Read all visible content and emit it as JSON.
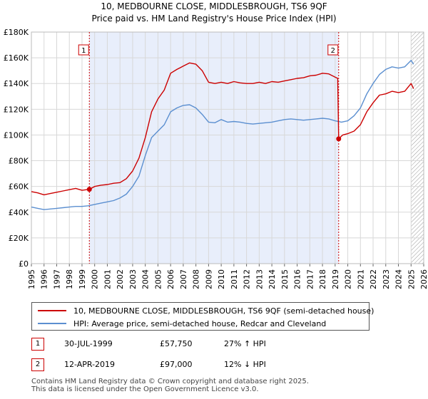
{
  "chart_data": {
    "type": "line",
    "title": "10, MEDBOURNE CLOSE, MIDDLESBROUGH, TS6 9QF",
    "subtitle": "Price paid vs. HM Land Registry's House Price Index (HPI)",
    "x_range": [
      1995,
      2026
    ],
    "ylim": [
      0,
      180000
    ],
    "y_ticks": [
      0,
      20000,
      40000,
      60000,
      80000,
      100000,
      120000,
      140000,
      160000,
      180000
    ],
    "y_tick_labels": [
      "£0",
      "£20K",
      "£40K",
      "£60K",
      "£80K",
      "£100K",
      "£120K",
      "£140K",
      "£160K",
      "£180K"
    ],
    "x_ticks": [
      1995,
      1996,
      1997,
      1998,
      1999,
      2000,
      2001,
      2002,
      2003,
      2004,
      2005,
      2006,
      2007,
      2008,
      2009,
      2010,
      2011,
      2012,
      2013,
      2014,
      2015,
      2016,
      2017,
      2018,
      2019,
      2020,
      2021,
      2022,
      2023,
      2024,
      2025,
      2026
    ],
    "grid": true,
    "shaded_period": [
      1999.58,
      2019.28
    ],
    "hatched_from": 2025.0,
    "series": [
      {
        "name": "10, MEDBOURNE CLOSE, MIDDLESBROUGH, TS6 9QF (semi-detached house)",
        "color": "#cc0000",
        "x": [
          1995.0,
          1995.5,
          1996.0,
          1996.5,
          1997.0,
          1997.5,
          1998.0,
          1998.5,
          1999.0,
          1999.58,
          2000.0,
          2000.5,
          2001.0,
          2001.5,
          2002.0,
          2002.5,
          2003.0,
          2003.5,
          2004.0,
          2004.5,
          2005.0,
          2005.5,
          2006.0,
          2006.5,
          2007.0,
          2007.5,
          2008.0,
          2008.5,
          2009.0,
          2009.5,
          2010.0,
          2010.5,
          2011.0,
          2011.5,
          2012.0,
          2012.5,
          2013.0,
          2013.5,
          2014.0,
          2014.5,
          2015.0,
          2015.5,
          2016.0,
          2016.5,
          2017.0,
          2017.5,
          2018.0,
          2018.5,
          2019.0,
          2019.2,
          2019.28,
          2019.6,
          2020.0,
          2020.5,
          2021.0,
          2021.5,
          2022.0,
          2022.5,
          2023.0,
          2023.5,
          2024.0,
          2024.5,
          2025.0,
          2025.2
        ],
        "values": [
          56000,
          55000,
          53500,
          54500,
          55500,
          56500,
          57500,
          58500,
          57000,
          57750,
          60000,
          61000,
          61500,
          62500,
          63000,
          66000,
          72000,
          82000,
          98000,
          118000,
          128000,
          135000,
          148000,
          151000,
          153500,
          156000,
          155000,
          150000,
          141000,
          140000,
          141000,
          140000,
          141500,
          140500,
          140000,
          140000,
          141000,
          140000,
          141500,
          141000,
          142000,
          143000,
          144000,
          144500,
          146000,
          146500,
          148000,
          147500,
          145000,
          144000,
          97000,
          100000,
          101000,
          103000,
          108000,
          118000,
          125000,
          131000,
          132000,
          134000,
          133000,
          134000,
          140000,
          136000
        ]
      },
      {
        "name": "HPI: Average price, semi-detached house, Redcar and Cleveland",
        "color": "#5b8fd0",
        "x": [
          1995.0,
          1995.5,
          1996.0,
          1996.5,
          1997.0,
          1997.5,
          1998.0,
          1998.5,
          1999.0,
          1999.5,
          2000.0,
          2000.5,
          2001.0,
          2001.5,
          2002.0,
          2002.5,
          2003.0,
          2003.5,
          2004.0,
          2004.5,
          2005.0,
          2005.5,
          2006.0,
          2006.5,
          2007.0,
          2007.5,
          2008.0,
          2008.5,
          2009.0,
          2009.5,
          2010.0,
          2010.5,
          2011.0,
          2011.5,
          2012.0,
          2012.5,
          2013.0,
          2013.5,
          2014.0,
          2014.5,
          2015.0,
          2015.5,
          2016.0,
          2016.5,
          2017.0,
          2017.5,
          2018.0,
          2018.5,
          2019.0,
          2019.5,
          2020.0,
          2020.5,
          2021.0,
          2021.5,
          2022.0,
          2022.5,
          2023.0,
          2023.5,
          2024.0,
          2024.5,
          2025.0,
          2025.2
        ],
        "values": [
          44000,
          43000,
          42000,
          42500,
          43000,
          43500,
          44000,
          44500,
          44500,
          45000,
          46000,
          47000,
          48000,
          49000,
          51000,
          54000,
          60000,
          68000,
          84000,
          98000,
          103000,
          108000,
          118000,
          121000,
          123000,
          123500,
          121000,
          116000,
          110000,
          109500,
          112000,
          110000,
          110500,
          110000,
          109000,
          108500,
          109000,
          109500,
          110000,
          111000,
          112000,
          112500,
          112000,
          111500,
          112000,
          112500,
          113000,
          112500,
          111000,
          110000,
          111000,
          115000,
          121000,
          132000,
          140000,
          147000,
          151000,
          153000,
          152000,
          153000,
          158000,
          155000
        ]
      }
    ],
    "markers": [
      {
        "label": "1",
        "x": 1999.58,
        "value": 57750
      },
      {
        "label": "2",
        "x": 2019.28,
        "value": 97000
      }
    ]
  },
  "legend": {
    "property_label": "10, MEDBOURNE CLOSE, MIDDLESBROUGH, TS6 9QF (semi-detached house)",
    "hpi_label": "HPI: Average price, semi-detached house, Redcar and Cleveland"
  },
  "transactions": [
    {
      "label": "1",
      "date": "30-JUL-1999",
      "price": "£57,750",
      "hpi": "27% ↑ HPI"
    },
    {
      "label": "2",
      "date": "12-APR-2019",
      "price": "£97,000",
      "hpi": "12% ↓ HPI"
    }
  ],
  "footer": {
    "line1": "Contains HM Land Registry data © Crown copyright and database right 2025.",
    "line2": "This data is licensed under the Open Government Licence v3.0."
  },
  "colors": {
    "property": "#cc0000",
    "hpi": "#5b8fd0",
    "shade": "#e8eefb"
  }
}
